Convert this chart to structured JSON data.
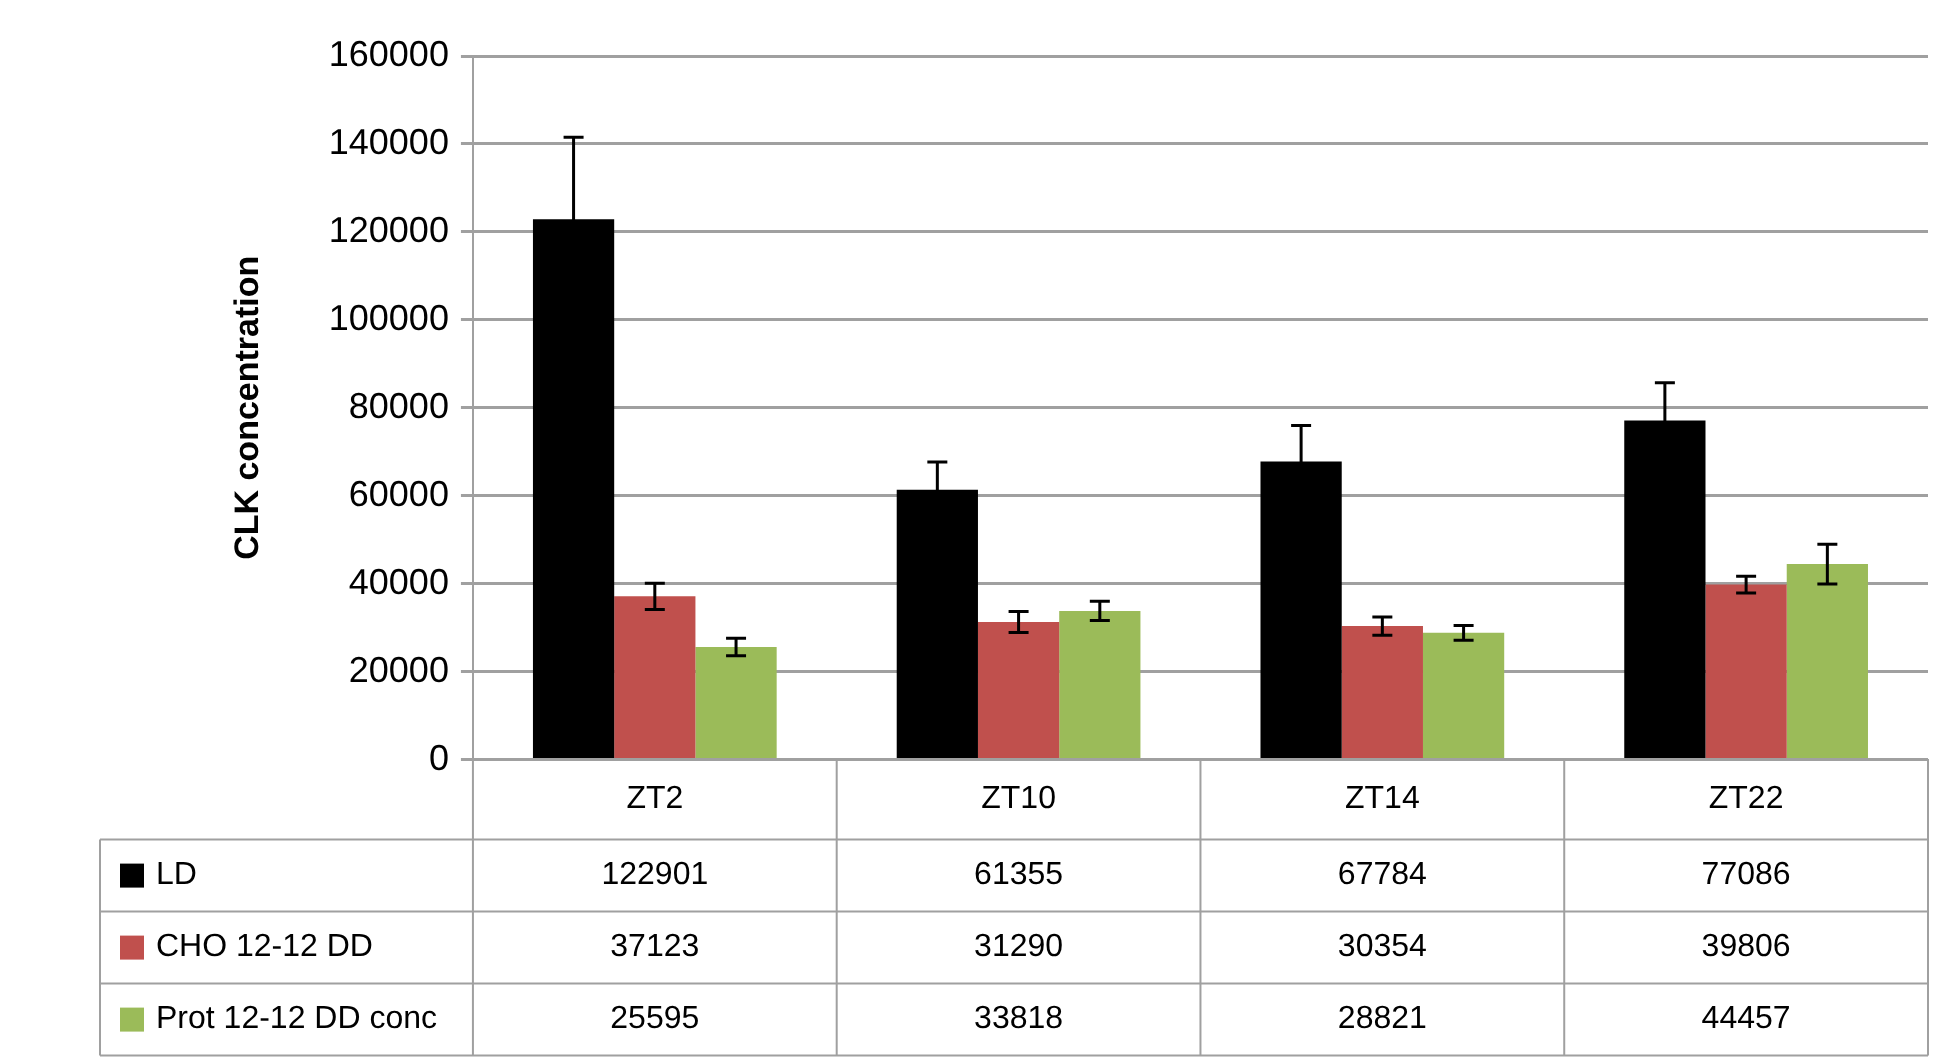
{
  "chart_data": {
    "type": "bar",
    "ylabel": "CLK concentration",
    "categories": [
      "ZT2",
      "ZT10",
      "ZT14",
      "ZT22"
    ],
    "series": [
      {
        "name": "LD",
        "color": "#000000",
        "values": [
          122901,
          61355,
          67784,
          77086
        ],
        "errors": [
          18600,
          6300,
          8200,
          8600
        ]
      },
      {
        "name": "CHO 12-12 DD",
        "color": "#c0504d",
        "values": [
          37123,
          31290,
          30354,
          39806
        ],
        "errors": [
          3000,
          2400,
          2100,
          1900
        ]
      },
      {
        "name": "Prot 12-12 DD conc",
        "color": "#9bbb59",
        "values": [
          25595,
          33818,
          28821,
          44457
        ],
        "errors": [
          2000,
          2200,
          1700,
          4500
        ]
      }
    ],
    "ylim": [
      0,
      160000
    ],
    "yticks": [
      0,
      20000,
      40000,
      60000,
      80000,
      100000,
      120000,
      140000,
      160000
    ],
    "grid": "y",
    "data_labels": true,
    "legend": "bottom left"
  }
}
